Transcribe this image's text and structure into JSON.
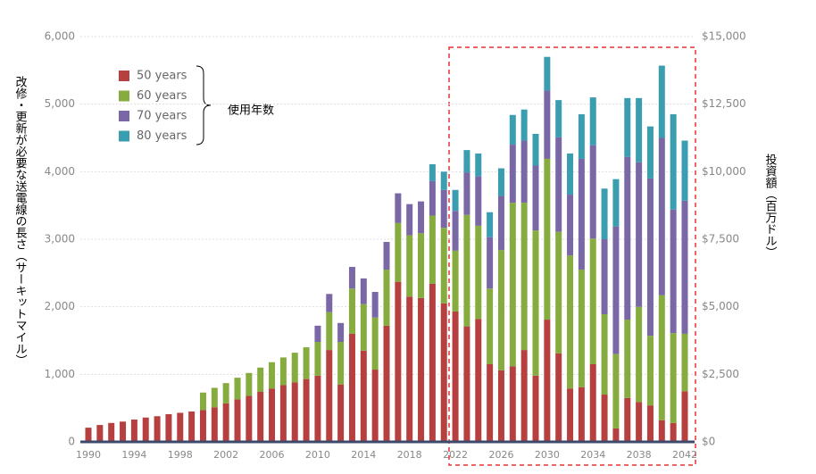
{
  "chart_data": {
    "type": "bar",
    "stacked": true,
    "ylabel": "改修・更新が必要な送電線の長さ（サーキットマイル）",
    "y2label": "投資額（百万ドル）",
    "legend_title": "使用年数",
    "categories": [
      "1990",
      null,
      null,
      null,
      "1994",
      null,
      null,
      null,
      "1998",
      null,
      null,
      null,
      "2002",
      null,
      null,
      null,
      "2006",
      null,
      null,
      null,
      "2010",
      null,
      null,
      null,
      "2014",
      null,
      null,
      null,
      "2018",
      null,
      null,
      null,
      "2022",
      null,
      null,
      null,
      "2026",
      null,
      null,
      null,
      "2030",
      null,
      null,
      null,
      "2034",
      null,
      null,
      null,
      "2038",
      null,
      null,
      null,
      "2042"
    ],
    "series": [
      {
        "name": "50 years",
        "color": "#b5403f",
        "values": [
          210,
          250,
          280,
          300,
          330,
          360,
          380,
          410,
          430,
          450,
          470,
          510,
          570,
          630,
          680,
          740,
          790,
          840,
          880,
          930,
          980,
          1360,
          850,
          1600,
          1350,
          1070,
          1720,
          2370,
          2150,
          2130,
          2340,
          2050,
          1930,
          1710,
          1820,
          1150,
          1060,
          1120,
          1360,
          980,
          1810,
          1310,
          790,
          810,
          1150,
          700,
          200,
          650,
          590,
          540,
          320,
          280,
          750
        ]
      },
      {
        "name": "60 years",
        "color": "#86ab3f",
        "values": [
          null,
          null,
          null,
          null,
          null,
          null,
          null,
          null,
          null,
          null,
          260,
          290,
          300,
          320,
          340,
          360,
          390,
          410,
          440,
          470,
          500,
          560,
          630,
          670,
          690,
          770,
          830,
          870,
          910,
          960,
          1010,
          1120,
          900,
          1650,
          1380,
          1120,
          1780,
          2420,
          2180,
          2150,
          2380,
          1800,
          1970,
          1740,
          1860,
          1190,
          1100,
          1160,
          1410,
          1030,
          1850,
          1330,
          850
        ]
      },
      {
        "name": "70 years",
        "color": "#7a68a6",
        "values": [
          null,
          null,
          null,
          null,
          null,
          null,
          null,
          null,
          null,
          null,
          null,
          null,
          null,
          null,
          null,
          null,
          null,
          null,
          null,
          null,
          240,
          270,
          280,
          320,
          380,
          380,
          410,
          440,
          460,
          470,
          510,
          560,
          590,
          630,
          730,
          760,
          800,
          860,
          920,
          960,
          1010,
          1400,
          900,
          1640,
          1380,
          1110,
          1890,
          2410,
          2140,
          2330,
          2330,
          1830,
          1970
        ]
      },
      {
        "name": "80 years",
        "color": "#3a9db0",
        "values": [
          null,
          null,
          null,
          null,
          null,
          null,
          null,
          null,
          null,
          null,
          null,
          null,
          null,
          null,
          null,
          null,
          null,
          null,
          null,
          null,
          null,
          null,
          null,
          null,
          null,
          null,
          null,
          null,
          null,
          null,
          250,
          270,
          310,
          330,
          340,
          370,
          410,
          440,
          460,
          470,
          500,
          550,
          610,
          660,
          710,
          750,
          700,
          870,
          950,
          770,
          1070,
          1410,
          890
        ]
      }
    ],
    "ylim": [
      0,
      6000
    ],
    "yticks": [
      0,
      {
        "value": 1000,
        "label": "1,000"
      },
      {
        "value": 2000,
        "label": "2,000"
      },
      {
        "value": 3000,
        "label": "3,000"
      },
      {
        "value": 4000,
        "label": "4,000"
      },
      {
        "value": 5000,
        "label": "5,000"
      },
      {
        "value": 6000,
        "label": "6,000"
      }
    ],
    "y2lim": [
      0,
      15000
    ],
    "y2ticks": [
      {
        "value": 0,
        "label": "$0"
      },
      {
        "value": 2500,
        "label": "$2,500"
      },
      {
        "value": 5000,
        "label": "$5,000"
      },
      {
        "value": 7500,
        "label": "$7,500"
      },
      {
        "value": 10000,
        "label": "$10,000"
      },
      {
        "value": 12500,
        "label": "$12,500"
      },
      {
        "value": 15000,
        "label": "$15,000"
      }
    ],
    "grid": true,
    "legend": "upper left"
  }
}
